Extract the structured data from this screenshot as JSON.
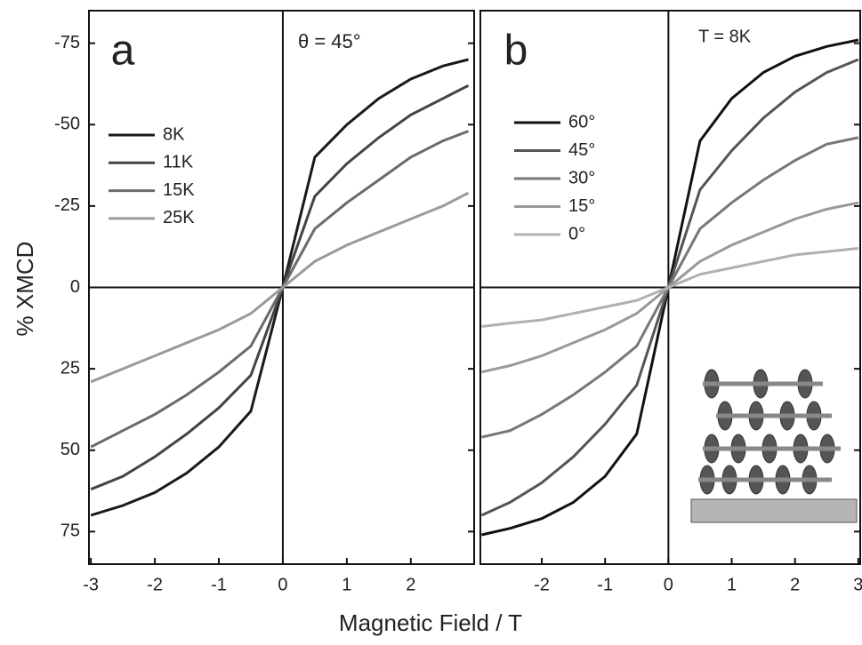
{
  "chart_data": [
    {
      "type": "line",
      "panel_label": "a",
      "annotation": "θ = 45°",
      "ylabel": "% XMCD",
      "xlabel": "Magnetic Field / T",
      "xlim": [
        -3.03,
        2.99
      ],
      "xticks": [
        -3,
        -2,
        -1,
        0,
        1,
        2
      ],
      "ylim": [
        85,
        -85
      ],
      "yticks": [
        -75,
        -50,
        -25,
        0,
        25,
        50,
        75
      ],
      "ytick_labels": true,
      "x": [
        -3,
        -2.5,
        -2,
        -1.5,
        -1,
        -0.5,
        0,
        0.5,
        1,
        1.5,
        2,
        2.5,
        2.9
      ],
      "series": [
        {
          "name": "8K",
          "color": "#1a1a1a",
          "values": [
            70,
            67,
            63,
            57,
            49,
            38,
            0,
            -40,
            -50,
            -58,
            -64,
            -68,
            -70
          ]
        },
        {
          "name": "11K",
          "color": "#444444",
          "values": [
            62,
            58,
            52,
            45,
            37,
            27,
            0,
            -28,
            -38,
            -46,
            -53,
            -58,
            -62
          ]
        },
        {
          "name": "15K",
          "color": "#6a6a6a",
          "values": [
            49,
            44,
            39,
            33,
            26,
            18,
            0,
            -18,
            -26,
            -33,
            -40,
            -45,
            -48
          ]
        },
        {
          "name": "25K",
          "color": "#9a9a9a",
          "values": [
            29,
            25,
            21,
            17,
            13,
            8,
            0,
            -8,
            -13,
            -17,
            -21,
            -25,
            -29
          ]
        }
      ]
    },
    {
      "type": "line",
      "panel_label": "b",
      "annotation": "T = 8K",
      "xlim": [
        -2.97,
        3.03
      ],
      "xticks": [
        -2,
        -1,
        0,
        1,
        2,
        3
      ],
      "ylim": [
        85,
        -85
      ],
      "yticks": [
        -75,
        -50,
        -25,
        0,
        25,
        50,
        75
      ],
      "ytick_labels": false,
      "x": [
        -2.95,
        -2.5,
        -2,
        -1.5,
        -1,
        -0.5,
        0,
        0.5,
        1,
        1.5,
        2,
        2.5,
        3
      ],
      "series": [
        {
          "name": "60°",
          "color": "#111111",
          "values": [
            76,
            74,
            71,
            66,
            58,
            45,
            0,
            -45,
            -58,
            -66,
            -71,
            -74,
            -76
          ]
        },
        {
          "name": "45°",
          "color": "#555555",
          "values": [
            70,
            66,
            60,
            52,
            42,
            30,
            0,
            -30,
            -42,
            -52,
            -60,
            -66,
            -70
          ]
        },
        {
          "name": "30°",
          "color": "#777777",
          "values": [
            46,
            44,
            39,
            33,
            26,
            18,
            0,
            -18,
            -26,
            -33,
            -39,
            -44,
            -46
          ]
        },
        {
          "name": "15°",
          "color": "#999999",
          "values": [
            26,
            24,
            21,
            17,
            13,
            8,
            0,
            -8,
            -13,
            -17,
            -21,
            -24,
            -26
          ]
        },
        {
          "name": "0°",
          "color": "#b0b0b0",
          "values": [
            12,
            11,
            10,
            8,
            6,
            4,
            0,
            -4,
            -6,
            -8,
            -10,
            -11,
            -12
          ]
        }
      ]
    }
  ]
}
